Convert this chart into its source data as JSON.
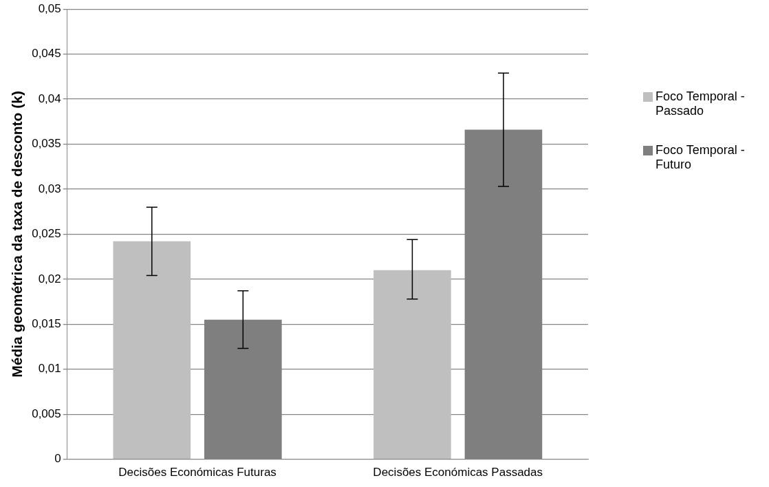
{
  "chart_data": {
    "type": "bar",
    "ylabel": "Média geométrica da taxa de desconto (k)",
    "categories": [
      "Decisões Económicas Futuras",
      "Decisões Económicas Passadas"
    ],
    "series": [
      {
        "name": "Foco Temporal - Passado",
        "color": "#bfbfbf",
        "values": [
          0.0242,
          0.021
        ],
        "errors": [
          [
            0.0204,
            0.028
          ],
          [
            0.0178,
            0.0244
          ]
        ]
      },
      {
        "name": "Foco Temporal - Futuro",
        "color": "#7f7f7f",
        "values": [
          0.0155,
          0.0366
        ],
        "errors": [
          [
            0.0123,
            0.0187
          ],
          [
            0.0303,
            0.0429
          ]
        ]
      }
    ],
    "ylim": [
      0,
      0.05
    ],
    "yticks": [
      0,
      {
        "value": 0.005,
        "label": "0,005"
      },
      {
        "value": 0.01,
        "label": "0,01"
      },
      {
        "value": 0.015,
        "label": "0,015"
      },
      {
        "value": 0.02,
        "label": "0,02"
      },
      {
        "value": 0.025,
        "label": "0,025"
      },
      {
        "value": 0.03,
        "label": "0,03"
      },
      {
        "value": 0.035,
        "label": "0,035"
      },
      {
        "value": 0.04,
        "label": "0,04"
      },
      {
        "value": 0.045,
        "label": "0,045"
      },
      {
        "value": 0.05,
        "label": "0,05"
      }
    ],
    "grid": "y",
    "legend": "right"
  }
}
